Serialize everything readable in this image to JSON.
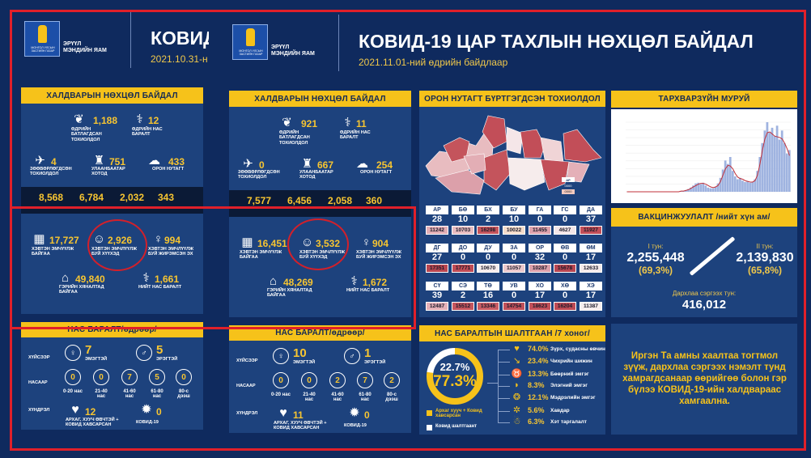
{
  "colors": {
    "accent_yellow": "#f6c21a",
    "background": "#0f2a5e",
    "panel": "#1d427d",
    "annotation_red": "#e0202a"
  },
  "back": {
    "ministry": "ЭРҮҮЛ\nМЭНДИЙН ЯАМ",
    "logo_text": "МОНГОЛ УЛСЫН ЗАСГИЙН ГАЗАР",
    "title": "КОВИД",
    "date": "2021.10.31-н",
    "situation": {
      "header": "ХАЛДВАРЫН НӨХЦӨЛ БАЙДАЛ",
      "items": [
        {
          "icon": "lungs-icon",
          "value": "1,188",
          "label": "ӨДРИЙН\nБАТЛАГДСАН\nТОХИОЛДОЛ"
        },
        {
          "icon": "doctor-icon",
          "value": "12",
          "label": "ӨДРИЙН НАС\nБАРАЛТ"
        },
        {
          "icon": "plane-icon",
          "value": "4",
          "label": "ЗӨӨВӨРЛӨГДСӨН\nТОХИОЛДОЛ"
        },
        {
          "icon": "city-icon",
          "value": "751",
          "label": "УЛААНБААТАР\nХОТОД"
        },
        {
          "icon": "map-icon",
          "value": "433",
          "label": "ОРОН НУТАГТ"
        }
      ],
      "totals": [
        "8,568",
        "6,784",
        "2,032",
        "343"
      ],
      "hospital": [
        {
          "icon": "hospital-icon",
          "value": "17,727",
          "label": "ХЭВТЭН ЭМЧҮҮЛЖ\nБАЙГАА"
        },
        {
          "icon": "baby-icon",
          "value": "2,926",
          "label": "ХЭВТЭН ЭМЧЛҮҮЛЖ\nБУЙ ХҮҮХЭД"
        },
        {
          "icon": "pregnant-icon",
          "value": "994",
          "label": "ХЭВТЭН ЭМЧЛҮҮЛЖ\nБУЙ ЖИРЭМСЭН ЭХ"
        },
        {
          "icon": "home-icon",
          "value": "49,840",
          "label": "ГЭРИЙН ХЯНАЛТАД\nБАЙГАА"
        },
        {
          "icon": "doctor-icon",
          "value": "1,661",
          "label": "НИЙТ НАС БАРАЛТ"
        }
      ]
    },
    "deaths": {
      "header": "НАС БАРАЛТ/өдрөөр/",
      "row_labels": [
        "ХҮЙСЭЭР",
        "НАСААР",
        "ХҮНДРЭЛ"
      ],
      "female": {
        "value": "7",
        "label": "ЭМЭГТЭЙ"
      },
      "male": {
        "value": "5",
        "label": "ЭРЭГТЭЙ"
      },
      "ages": [
        {
          "value": "0",
          "label": "0-20 нас"
        },
        {
          "value": "0",
          "label": "21-40\nнас"
        },
        {
          "value": "7",
          "label": "41-60\nнас"
        },
        {
          "value": "5",
          "label": "61-80\nнас"
        },
        {
          "value": "0",
          "label": "80-с\nдээш"
        }
      ],
      "chronic": {
        "value": "12",
        "label": "АРХАГ, ХУУЧ ӨВЧТЭЙ +\nКОВИД ХАВСАРСАН"
      },
      "covid": {
        "value": "0",
        "label": "КОВИД-19"
      }
    }
  },
  "front": {
    "ministry": "ЭРҮҮЛ\nМЭНДИЙН ЯАМ",
    "logo_text": "МОНГОЛ УЛСЫН ЗАСГИЙН ГАЗАР",
    "title": "КОВИД-19 ЦАР ТАХЛЫН НӨХЦӨЛ БАЙДАЛ",
    "date": "2021.11.01-ний өдрийн байдлаар",
    "situation": {
      "header": "ХАЛДВАРЫН НӨХЦӨЛ БАЙДАЛ",
      "items": [
        {
          "icon": "lungs-icon",
          "value": "921",
          "label": "ӨДРИЙН\nБАТЛАГДСАН\nТОХИОЛДОЛ"
        },
        {
          "icon": "doctor-icon",
          "value": "11",
          "label": "ӨДРИЙН НАС\nБАРАЛТ"
        },
        {
          "icon": "plane-icon",
          "value": "0",
          "label": "ЗӨӨВӨРЛӨГДСӨН\nТОХИОЛДОЛ"
        },
        {
          "icon": "city-icon",
          "value": "667",
          "label": "УЛААНБААТАР\nХОТОД"
        },
        {
          "icon": "map-icon",
          "value": "254",
          "label": "ОРОН НУТАГТ"
        }
      ],
      "totals": [
        "7,577",
        "6,456",
        "2,058",
        "360"
      ],
      "hospital": [
        {
          "icon": "hospital-icon",
          "value": "16,451",
          "label": "ХЭВТЭН ЭМЧҮҮЛЖ\nБАЙГАА"
        },
        {
          "icon": "baby-icon",
          "value": "3,532",
          "label": "ХЭВТЭН ЭМЧЛҮҮЛЖ\nБУЙ ХҮҮХЭД"
        },
        {
          "icon": "pregnant-icon",
          "value": "904",
          "label": "ХЭВТЭН ЭМЧЛҮҮЛЖ\nБУЙ ЖИРЭМСЭН ЭХ"
        },
        {
          "icon": "home-icon",
          "value": "48,269",
          "label": "ГЭРИЙН ХЯНАЛТАД\nБАЙГАА"
        },
        {
          "icon": "doctor-icon",
          "value": "1,672",
          "label": "НИЙТ НАС БАРАЛТ"
        }
      ]
    },
    "deaths": {
      "header": "НАС БАРАЛТ/өдрөөр/",
      "row_labels": [
        "ХҮЙСЭЭР",
        "НАСААР",
        "ХҮНДРЭЛ"
      ],
      "female": {
        "value": "10",
        "label": "ЭМЭГТЭЙ"
      },
      "male": {
        "value": "1",
        "label": "ЭРЭГТЭЙ"
      },
      "ages": [
        {
          "value": "0",
          "label": "0-20 нас"
        },
        {
          "value": "0",
          "label": "21-40\nнас"
        },
        {
          "value": "2",
          "label": "41-60\nнас"
        },
        {
          "value": "7",
          "label": "61-80\nнас"
        },
        {
          "value": "2",
          "label": "80-с\nдээш"
        }
      ],
      "chronic": {
        "value": "11",
        "label": "АРХАГ, ХУУЧ ӨВЧТЭЙ +\nКОВИД ХАВСАРСАН"
      },
      "covid": {
        "value": "0",
        "label": "КОВИД-19"
      }
    },
    "regions": {
      "header": "ОРОН НУТАГТ БҮРТГЭГДСЭН ТОХИОЛДОЛ",
      "legend": [
        "АР",
        "0000",
        "0000"
      ],
      "rows": [
        [
          {
            "code": "АР",
            "count": "28",
            "total": "11242",
            "color": "#e3aeb5"
          },
          {
            "code": "БӨ",
            "count": "10",
            "total": "10703",
            "color": "#e8bcc0"
          },
          {
            "code": "БХ",
            "count": "2",
            "total": "16298",
            "color": "#c4545c"
          },
          {
            "code": "БУ",
            "count": "10",
            "total": "10022",
            "color": "#f5dccb"
          },
          {
            "code": "ГА",
            "count": "0",
            "total": "11455",
            "color": "#dfa3ad"
          },
          {
            "code": "ГС",
            "count": "0",
            "total": "4627",
            "color": "#f4e6e8"
          },
          {
            "code": "ДА",
            "count": "37",
            "total": "11927",
            "color": "#c24e58"
          }
        ],
        [
          {
            "code": "ДГ",
            "count": "27",
            "total": "17351",
            "color": "#b94650"
          },
          {
            "code": "ДО",
            "count": "0",
            "total": "17771",
            "color": "#bf4b55"
          },
          {
            "code": "ДУ",
            "count": "0",
            "total": "10670",
            "color": "#f6ecec"
          },
          {
            "code": "ЗА",
            "count": "0",
            "total": "11057",
            "color": "#ecc8cc"
          },
          {
            "code": "ОР",
            "count": "32",
            "total": "10287",
            "color": "#dca0aa"
          },
          {
            "code": "ӨВ",
            "count": "0",
            "total": "15678",
            "color": "#b74652"
          },
          {
            "code": "ӨМ",
            "count": "17",
            "total": "12633",
            "color": "#f5eaea"
          }
        ],
        [
          {
            "code": "СҮ",
            "count": "39",
            "total": "12487",
            "color": "#e4b0b8"
          },
          {
            "code": "СЭ",
            "count": "2",
            "total": "15512",
            "color": "#c4555e"
          },
          {
            "code": "ТӨ",
            "count": "16",
            "total": "13346",
            "color": "#c85c64"
          },
          {
            "code": "УВ",
            "count": "0",
            "total": "14754",
            "color": "#c0505a"
          },
          {
            "code": "ХО",
            "count": "17",
            "total": "18623",
            "color": "#c24f59"
          },
          {
            "code": "ХӨ",
            "count": "0",
            "total": "16204",
            "color": "#bd4a54"
          },
          {
            "code": "ХЭ",
            "count": "17",
            "total": "11387",
            "color": "#f6eeee"
          }
        ]
      ]
    },
    "causes": {
      "header": "НАС БАРАЛТЫН ШАЛТГААН /7 хоног/",
      "donut": {
        "chronic_pct": 77.3,
        "covid_pct": 22.7,
        "chronic_label": "77.3%",
        "covid_label": "22.7%"
      },
      "legend": [
        "Архаг хууч + Ковид хавсарсан",
        "Ковид шалтгаант"
      ],
      "items": [
        {
          "icon": "heart-organ-icon",
          "value": "74.0%",
          "label": "Зүрх, судасны өвчин"
        },
        {
          "icon": "needle-icon",
          "value": "23.4%",
          "label": "Чихрийн шижин"
        },
        {
          "icon": "kidney-icon",
          "value": "13.3%",
          "label": "Бөөрний эмгэг"
        },
        {
          "icon": "liver-icon",
          "value": "8.3%",
          "label": "Элэгний эмгэг"
        },
        {
          "icon": "brain-icon",
          "value": "12.1%",
          "label": "Мэдрэлийн эмгэг"
        },
        {
          "icon": "cancer-icon",
          "value": "5.6%",
          "label": "Хавдар"
        },
        {
          "icon": "obesity-icon",
          "value": "6.3%",
          "label": "Хэт таргалалт"
        }
      ]
    },
    "curve": {
      "header": "ТАРХВАРЗҮЙН МУРУЙ"
    },
    "vaccine": {
      "header": "ВАКЦИНЖУУЛАЛТ /нийт хүн ам/",
      "dose1_label": "I тун:",
      "dose1_value": "2,255,448",
      "dose1_pct": "(69,3%)",
      "dose2_label": "II тун:",
      "dose2_value": "2,139,830",
      "dose2_pct": "(65,8%)",
      "booster_label": "Дархлаа сэргээх тун:",
      "booster_value": "416,012"
    },
    "message": "Иргэн Та амны хаалтаа тогтмол зүүж, дархлаа сэргээх нэмэлт тунд хамрагдсанаар өөрийгөө болон гэр бүлээ КОВИД-19-ийн халдвараас хамгаална."
  },
  "chart_data": {
    "type": "area",
    "title": "",
    "xlabel": "",
    "ylabel": "",
    "grid": true,
    "series": [
      {
        "kind": "bar",
        "color": "#9fb3e0",
        "values": [
          0,
          0,
          0,
          0,
          0,
          0,
          0,
          0,
          0,
          0,
          0,
          0,
          0,
          0,
          0,
          0,
          0,
          0,
          0,
          0,
          0,
          0,
          1,
          1,
          2,
          4,
          6,
          9,
          12,
          13,
          11,
          13,
          9,
          6,
          5,
          5,
          7,
          12,
          20,
          32,
          45,
          40,
          50,
          30,
          22,
          18,
          20,
          16,
          14,
          15,
          13,
          14,
          18,
          30,
          50,
          70,
          88,
          100,
          85,
          92,
          80,
          95,
          75,
          88,
          70,
          55,
          60
        ]
      },
      {
        "kind": "line",
        "color": "#c0303a",
        "values": [
          0,
          0,
          0,
          0,
          0,
          0,
          0,
          0,
          0,
          0,
          0,
          0,
          0,
          0,
          0,
          0,
          0,
          0,
          0,
          0,
          0,
          0,
          1,
          1,
          2,
          3,
          5,
          7,
          9,
          11,
          12,
          12,
          11,
          9,
          7,
          6,
          7,
          9,
          15,
          24,
          33,
          38,
          37,
          33,
          26,
          21,
          19,
          18,
          16,
          15,
          14,
          14,
          16,
          24,
          40,
          60,
          76,
          85,
          86,
          83,
          80,
          79,
          78,
          76,
          70,
          62,
          52
        ]
      }
    ]
  }
}
